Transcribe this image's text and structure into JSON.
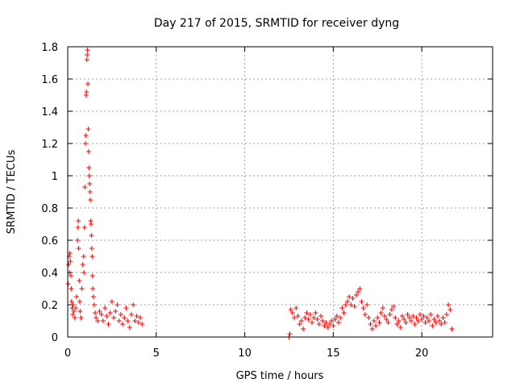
{
  "chart_data": {
    "type": "scatter",
    "title": "Day 217 of 2015, SRMTID for receiver dyng",
    "xlabel": "GPS time / hours",
    "ylabel": "SRMTID / TECUs",
    "xlim": [
      0,
      24
    ],
    "ylim": [
      0,
      1.8
    ],
    "xticks": [
      0,
      5,
      10,
      15,
      20
    ],
    "yticks": [
      0,
      0.2,
      0.4,
      0.6,
      0.8,
      1,
      1.2,
      1.4,
      1.6,
      1.8
    ],
    "xtick_labels": [
      "0",
      "5",
      "10",
      "15",
      "20"
    ],
    "ytick_labels": [
      "0",
      "0.2",
      "0.4",
      "0.6",
      "0.8",
      "1",
      "1.2",
      "1.4",
      "1.6",
      "1.8"
    ],
    "grid": true,
    "marker": "plus",
    "color": "#ff0000",
    "series": [
      {
        "name": "dyng",
        "points": [
          [
            0.02,
            0.33
          ],
          [
            0.05,
            0.45
          ],
          [
            0.08,
            0.5
          ],
          [
            0.1,
            0.4
          ],
          [
            0.12,
            0.52
          ],
          [
            0.15,
            0.47
          ],
          [
            0.18,
            0.38
          ],
          [
            0.2,
            0.3
          ],
          [
            0.22,
            0.22
          ],
          [
            0.25,
            0.18
          ],
          [
            0.28,
            0.14
          ],
          [
            0.3,
            0.2
          ],
          [
            0.35,
            0.16
          ],
          [
            0.4,
            0.12
          ],
          [
            0.45,
            0.18
          ],
          [
            0.5,
            0.25
          ],
          [
            0.55,
            0.6
          ],
          [
            0.58,
            0.68
          ],
          [
            0.6,
            0.72
          ],
          [
            0.62,
            0.55
          ],
          [
            0.65,
            0.35
          ],
          [
            0.68,
            0.22
          ],
          [
            0.7,
            0.16
          ],
          [
            0.75,
            0.12
          ],
          [
            0.8,
            0.3
          ],
          [
            0.85,
            0.45
          ],
          [
            0.9,
            0.5
          ],
          [
            0.92,
            0.4
          ],
          [
            0.95,
            0.68
          ],
          [
            0.97,
            0.93
          ],
          [
            1.0,
            1.2
          ],
          [
            1.02,
            1.25
          ],
          [
            1.04,
            1.5
          ],
          [
            1.06,
            1.52
          ],
          [
            1.08,
            1.72
          ],
          [
            1.1,
            1.75
          ],
          [
            1.12,
            1.78
          ],
          [
            1.14,
            1.57
          ],
          [
            1.16,
            1.29
          ],
          [
            1.18,
            1.15
          ],
          [
            1.2,
            1.05
          ],
          [
            1.22,
            1.0
          ],
          [
            1.24,
            0.95
          ],
          [
            1.26,
            0.9
          ],
          [
            1.28,
            0.85
          ],
          [
            1.3,
            0.72
          ],
          [
            1.32,
            0.7
          ],
          [
            1.34,
            0.63
          ],
          [
            1.36,
            0.55
          ],
          [
            1.38,
            0.5
          ],
          [
            1.4,
            0.38
          ],
          [
            1.42,
            0.3
          ],
          [
            1.45,
            0.25
          ],
          [
            1.5,
            0.2
          ],
          [
            1.55,
            0.15
          ],
          [
            1.6,
            0.12
          ],
          [
            1.7,
            0.1
          ],
          [
            1.8,
            0.16
          ],
          [
            1.9,
            0.14
          ],
          [
            2.0,
            0.1
          ],
          [
            2.1,
            0.18
          ],
          [
            2.2,
            0.13
          ],
          [
            2.3,
            0.08
          ],
          [
            2.4,
            0.15
          ],
          [
            2.5,
            0.22
          ],
          [
            2.6,
            0.12
          ],
          [
            2.7,
            0.16
          ],
          [
            2.8,
            0.2
          ],
          [
            2.9,
            0.1
          ],
          [
            3.0,
            0.14
          ],
          [
            3.1,
            0.08
          ],
          [
            3.2,
            0.12
          ],
          [
            3.3,
            0.18
          ],
          [
            3.4,
            0.1
          ],
          [
            3.5,
            0.06
          ],
          [
            3.6,
            0.14
          ],
          [
            3.7,
            0.2
          ],
          [
            3.8,
            0.1
          ],
          [
            3.9,
            0.13
          ],
          [
            4.0,
            0.09
          ],
          [
            4.1,
            0.12
          ],
          [
            4.2,
            0.08
          ],
          [
            12.5,
            0.0
          ],
          [
            12.55,
            0.02
          ],
          [
            12.6,
            0.17
          ],
          [
            12.7,
            0.15
          ],
          [
            12.8,
            0.12
          ],
          [
            12.9,
            0.18
          ],
          [
            13.0,
            0.13
          ],
          [
            13.1,
            0.08
          ],
          [
            13.2,
            0.1
          ],
          [
            13.3,
            0.05
          ],
          [
            13.4,
            0.12
          ],
          [
            13.5,
            0.15
          ],
          [
            13.6,
            0.11
          ],
          [
            13.7,
            0.14
          ],
          [
            13.8,
            0.09
          ],
          [
            13.9,
            0.12
          ],
          [
            14.0,
            0.15
          ],
          [
            14.1,
            0.11
          ],
          [
            14.2,
            0.08
          ],
          [
            14.3,
            0.13
          ],
          [
            14.4,
            0.1
          ],
          [
            14.5,
            0.07
          ],
          [
            14.6,
            0.09
          ],
          [
            14.7,
            0.06
          ],
          [
            14.8,
            0.08
          ],
          [
            14.9,
            0.1
          ],
          [
            15.0,
            0.07
          ],
          [
            15.1,
            0.11
          ],
          [
            15.2,
            0.13
          ],
          [
            15.3,
            0.09
          ],
          [
            15.4,
            0.12
          ],
          [
            15.5,
            0.18
          ],
          [
            15.6,
            0.15
          ],
          [
            15.7,
            0.2
          ],
          [
            15.8,
            0.22
          ],
          [
            15.9,
            0.25
          ],
          [
            16.0,
            0.2
          ],
          [
            16.1,
            0.24
          ],
          [
            16.2,
            0.19
          ],
          [
            16.3,
            0.26
          ],
          [
            16.4,
            0.28
          ],
          [
            16.5,
            0.3
          ],
          [
            16.6,
            0.22
          ],
          [
            16.7,
            0.18
          ],
          [
            16.8,
            0.14
          ],
          [
            16.9,
            0.2
          ],
          [
            17.0,
            0.12
          ],
          [
            17.1,
            0.08
          ],
          [
            17.2,
            0.05
          ],
          [
            17.3,
            0.1
          ],
          [
            17.4,
            0.07
          ],
          [
            17.5,
            0.12
          ],
          [
            17.6,
            0.09
          ],
          [
            17.7,
            0.15
          ],
          [
            17.8,
            0.18
          ],
          [
            17.9,
            0.13
          ],
          [
            18.0,
            0.11
          ],
          [
            18.1,
            0.09
          ],
          [
            18.2,
            0.14
          ],
          [
            18.3,
            0.17
          ],
          [
            18.4,
            0.19
          ],
          [
            18.5,
            0.12
          ],
          [
            18.6,
            0.08
          ],
          [
            18.7,
            0.1
          ],
          [
            18.8,
            0.06
          ],
          [
            18.9,
            0.13
          ],
          [
            19.0,
            0.11
          ],
          [
            19.1,
            0.09
          ],
          [
            19.2,
            0.14
          ],
          [
            19.3,
            0.12
          ],
          [
            19.4,
            0.1
          ],
          [
            19.5,
            0.13
          ],
          [
            19.6,
            0.08
          ],
          [
            19.7,
            0.12
          ],
          [
            19.8,
            0.1
          ],
          [
            19.9,
            0.14
          ],
          [
            20.0,
            0.11
          ],
          [
            20.1,
            0.13
          ],
          [
            20.2,
            0.09
          ],
          [
            20.3,
            0.12
          ],
          [
            20.4,
            0.1
          ],
          [
            20.5,
            0.14
          ],
          [
            20.6,
            0.07
          ],
          [
            20.7,
            0.11
          ],
          [
            20.8,
            0.09
          ],
          [
            20.9,
            0.13
          ],
          [
            21.0,
            0.1
          ],
          [
            21.1,
            0.08
          ],
          [
            21.2,
            0.12
          ],
          [
            21.3,
            0.09
          ],
          [
            21.4,
            0.14
          ],
          [
            21.5,
            0.2
          ],
          [
            21.6,
            0.17
          ],
          [
            21.7,
            0.05
          ]
        ]
      }
    ]
  }
}
